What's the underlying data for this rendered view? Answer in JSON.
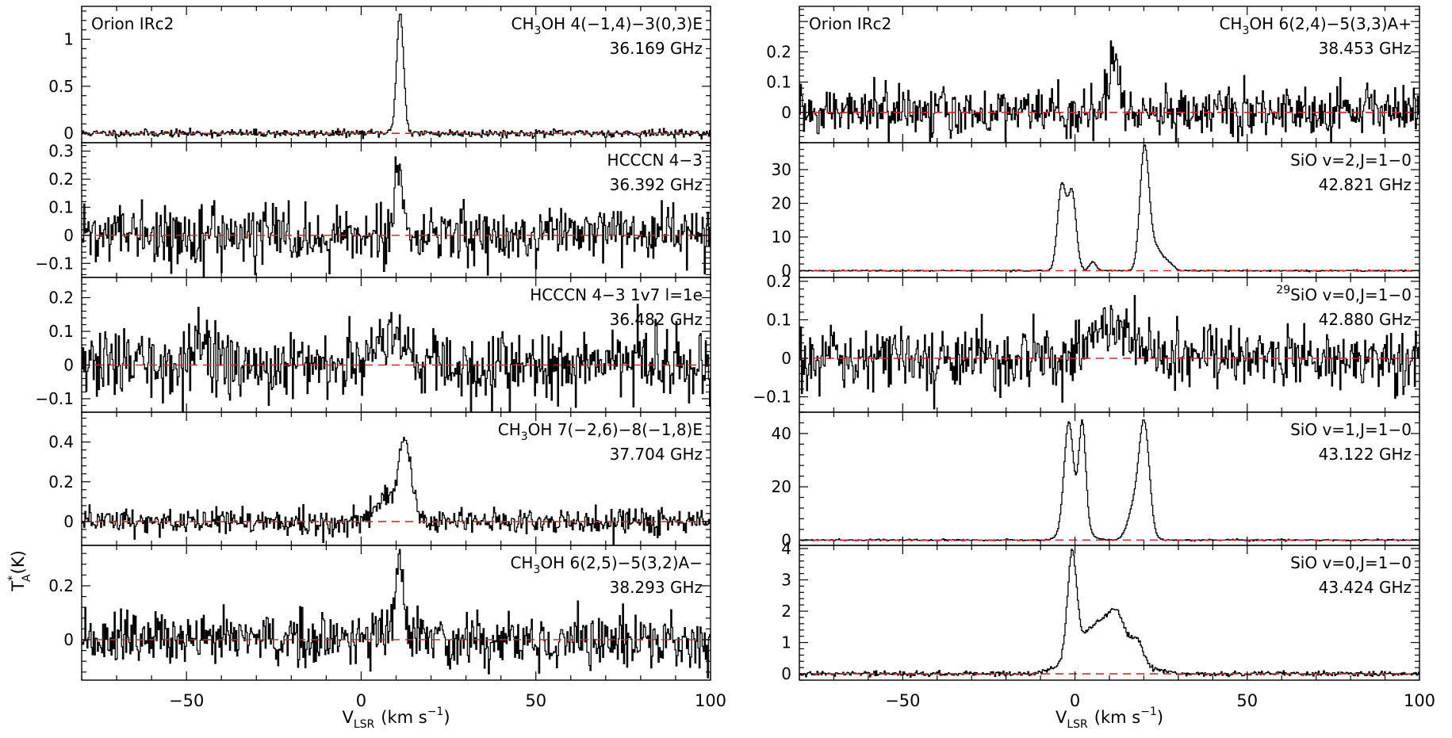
{
  "chart_data": {
    "type": "line",
    "shared": {
      "xlabel_main": "V",
      "xlabel_sub": "LSR",
      "xlabel_units_pre": "(km s",
      "xlabel_units_exp": "−1",
      "xlabel_units_post": ")",
      "ylabel_main": "T",
      "ylabel_sup": "*",
      "ylabel_sub": "A",
      "ylabel_units": "(K)",
      "xlim": [
        -80,
        100
      ],
      "x_ticks": [
        -50,
        0,
        50,
        100
      ],
      "x_tick_labels": [
        "−50",
        "0",
        "50",
        "100"
      ],
      "baseline_value": 0,
      "baseline_color": "#d62728",
      "line_color": "#000000"
    },
    "panels": [
      {
        "id": "p1",
        "column": "left",
        "source": "Orion IRc2",
        "line_parts": [
          [
            "CH",
            ""
          ],
          [
            "3",
            "sub"
          ],
          [
            "OH 4(−1,4)−3(0,3)E",
            ""
          ]
        ],
        "freq": "36.169 GHz",
        "ylim": [
          -0.1,
          1.35
        ],
        "y_ticks": [
          0,
          0.5,
          1
        ],
        "y_tick_labels": [
          "0",
          "0.5",
          "1"
        ],
        "components": [
          {
            "v": 11,
            "peak": 1.28,
            "sigma": 1.0
          }
        ],
        "noise": 0.02,
        "seed": 11
      },
      {
        "id": "p2",
        "column": "left",
        "source": "",
        "line_parts": [
          [
            "HCCCN 4−3",
            ""
          ]
        ],
        "freq": "36.392 GHz",
        "ylim": [
          -0.15,
          0.33
        ],
        "y_ticks": [
          -0.1,
          0,
          0.1,
          0.2,
          0.3
        ],
        "y_tick_labels": [
          "−0.1",
          "0",
          "0.1",
          "0.2",
          "0.3"
        ],
        "components": [
          {
            "v": 10.5,
            "peak": 0.24,
            "sigma": 1.2
          }
        ],
        "noise": 0.05,
        "seed": 22
      },
      {
        "id": "p3",
        "column": "left",
        "source": "",
        "line_parts": [
          [
            "HCCCN 4−3 1v7 l=1e",
            ""
          ]
        ],
        "freq": "36.482 GHz",
        "ylim": [
          -0.14,
          0.26
        ],
        "y_ticks": [
          -0.1,
          0,
          0.1,
          0.2
        ],
        "y_tick_labels": [
          "−0.1",
          "0",
          "0.1",
          "0.2"
        ],
        "components": [
          {
            "v": 8,
            "peak": 0.1,
            "sigma": 5
          },
          {
            "v": -46,
            "peak": 0.08,
            "sigma": 1.5
          }
        ],
        "noise": 0.05,
        "seed": 33
      },
      {
        "id": "p4",
        "column": "left",
        "source": "",
        "line_parts": [
          [
            "CH",
            ""
          ],
          [
            "3",
            "sub"
          ],
          [
            "OH 7(−2,6)−8(−1,8)E",
            ""
          ]
        ],
        "freq": "37.704 GHz",
        "ylim": [
          -0.12,
          0.55
        ],
        "y_ticks": [
          0,
          0.2,
          0.4
        ],
        "y_tick_labels": [
          "0",
          "0.2",
          "0.4"
        ],
        "components": [
          {
            "v": 12.5,
            "peak": 0.38,
            "sigma": 1.8
          },
          {
            "v": 7,
            "peak": 0.12,
            "sigma": 3
          }
        ],
        "noise": 0.035,
        "seed": 44
      },
      {
        "id": "p5",
        "column": "left",
        "source": "",
        "line_parts": [
          [
            "CH",
            ""
          ],
          [
            "3",
            "sub"
          ],
          [
            "OH 6(2,5)−5(3,2)A−",
            ""
          ]
        ],
        "freq": "38.293 GHz",
        "ylim": [
          -0.15,
          0.35
        ],
        "y_ticks": [
          0,
          0.2
        ],
        "y_tick_labels": [
          "0",
          "0.2"
        ],
        "components": [
          {
            "v": 11,
            "peak": 0.24,
            "sigma": 1.2
          },
          {
            "v": 7,
            "peak": 0.05,
            "sigma": 3
          }
        ],
        "noise": 0.05,
        "seed": 55
      },
      {
        "id": "p6",
        "column": "right",
        "source": "Orion IRc2",
        "line_parts": [
          [
            "CH",
            ""
          ],
          [
            "3",
            "sub"
          ],
          [
            "OH 6(2,4)−5(3,3)A+",
            ""
          ]
        ],
        "freq": "38.453 GHz",
        "ylim": [
          -0.1,
          0.35
        ],
        "y_ticks": [
          0,
          0.1,
          0.2
        ],
        "y_tick_labels": [
          "0",
          "0.1",
          "0.2"
        ],
        "components": [
          {
            "v": 11,
            "peak": 0.18,
            "sigma": 1.5
          }
        ],
        "noise": 0.04,
        "seed": 66
      },
      {
        "id": "p7",
        "column": "right",
        "source": "",
        "line_parts": [
          [
            "SiO v=2,J=1−0",
            ""
          ]
        ],
        "freq": "42.821 GHz",
        "ylim": [
          -2,
          38
        ],
        "y_ticks": [
          0,
          10,
          20,
          30
        ],
        "y_tick_labels": [
          "0",
          "10",
          "20",
          "30"
        ],
        "components": [
          {
            "v": -4,
            "peak": 25,
            "sigma": 1.2
          },
          {
            "v": -1,
            "peak": 23,
            "sigma": 1.2
          },
          {
            "v": 20,
            "peak": 35,
            "sigma": 1.3
          },
          {
            "v": 23,
            "peak": 7,
            "sigma": 2
          },
          {
            "v": 5,
            "peak": 2.5,
            "sigma": 1
          },
          {
            "v": 27,
            "peak": 2,
            "sigma": 1.5
          }
        ],
        "noise": 0.1,
        "seed": 77
      },
      {
        "id": "p8",
        "column": "right",
        "source": "",
        "line_parts": [
          [
            "29",
            "sup"
          ],
          [
            "SiO v=0,J=1−0",
            ""
          ]
        ],
        "freq": "42.880 GHz",
        "ylim": [
          -0.14,
          0.21
        ],
        "y_ticks": [
          -0.1,
          0,
          0.1,
          0.2
        ],
        "y_tick_labels": [
          "−0.1",
          "0",
          "0.1",
          "0.2"
        ],
        "components": [
          {
            "v": 12,
            "peak": 0.09,
            "sigma": 6
          }
        ],
        "noise": 0.04,
        "seed": 88
      },
      {
        "id": "p9",
        "column": "right",
        "source": "",
        "line_parts": [
          [
            "SiO v=1,J=1−0",
            ""
          ]
        ],
        "freq": "43.122 GHz",
        "ylim": [
          -2,
          48
        ],
        "y_ticks": [
          0,
          20,
          40
        ],
        "y_tick_labels": [
          "0",
          "20",
          "40"
        ],
        "components": [
          {
            "v": -2,
            "peak": 38,
            "sigma": 1.3
          },
          {
            "v": 2,
            "peak": 38,
            "sigma": 1.0
          },
          {
            "v": 20,
            "peak": 42,
            "sigma": 1.5
          },
          {
            "v": 17,
            "peak": 12,
            "sigma": 1.8
          },
          {
            "v": 0,
            "peak": 8,
            "sigma": 3
          }
        ],
        "noise": 0.15,
        "seed": 99
      },
      {
        "id": "p10",
        "column": "right",
        "source": "",
        "line_parts": [
          [
            "SiO v=0,J=1−0",
            ""
          ]
        ],
        "freq": "43.424 GHz",
        "ylim": [
          -0.2,
          4.1
        ],
        "y_ticks": [
          0,
          1,
          2,
          3,
          4
        ],
        "y_tick_labels": [
          "0",
          "1",
          "2",
          "3",
          "4"
        ],
        "components": [
          {
            "v": -1,
            "peak": 3.2,
            "sigma": 1.3
          },
          {
            "v": 8,
            "peak": 1.7,
            "sigma": 7
          },
          {
            "v": 12,
            "peak": 0.6,
            "sigma": 2
          },
          {
            "v": 18,
            "peak": 0.5,
            "sigma": 1.5
          }
        ],
        "noise": 0.04,
        "seed": 111
      }
    ]
  }
}
